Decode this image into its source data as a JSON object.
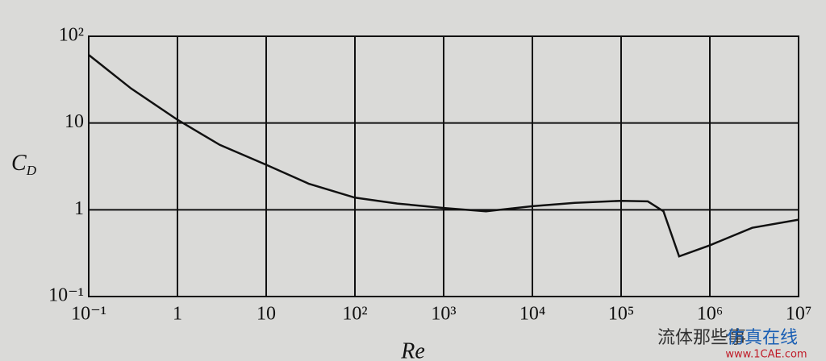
{
  "chart_data": {
    "type": "line",
    "xlabel": "Re",
    "ylabel": "CD",
    "xscale": "log",
    "yscale": "log",
    "grid": true,
    "xlim": [
      0.1,
      10000000
    ],
    "ylim": [
      0.1,
      100
    ],
    "xticks": [
      {
        "value": 0.1,
        "label": "10⁻¹"
      },
      1,
      10,
      {
        "value": 100,
        "label": "10²"
      },
      {
        "value": 1000,
        "label": "10³"
      },
      {
        "value": 10000,
        "label": "10⁴"
      },
      {
        "value": 100000,
        "label": "10⁵"
      },
      {
        "value": 1000000,
        "label": "10⁶"
      },
      {
        "value": 10000000,
        "label": "10⁷"
      }
    ],
    "yticks": [
      {
        "value": 0.1,
        "label": "10⁻¹"
      },
      1,
      10,
      {
        "value": 100,
        "label": "10²"
      }
    ],
    "series": [
      {
        "color": "#111111",
        "x": [
          0.1,
          0.3,
          1,
          3,
          10,
          30,
          100,
          300,
          1000,
          3000,
          10000,
          30000,
          100000,
          200000,
          300000,
          450000,
          1000000,
          3000000,
          10000000
        ],
        "values": [
          61,
          25,
          10.9,
          5.6,
          3.3,
          2.0,
          1.38,
          1.18,
          1.05,
          0.96,
          1.1,
          1.2,
          1.27,
          1.25,
          0.96,
          0.29,
          0.39,
          0.62,
          0.77
        ]
      }
    ],
    "watermark": [
      "流体那些事",
      "仿真在线",
      "www.1CAE.com"
    ]
  }
}
